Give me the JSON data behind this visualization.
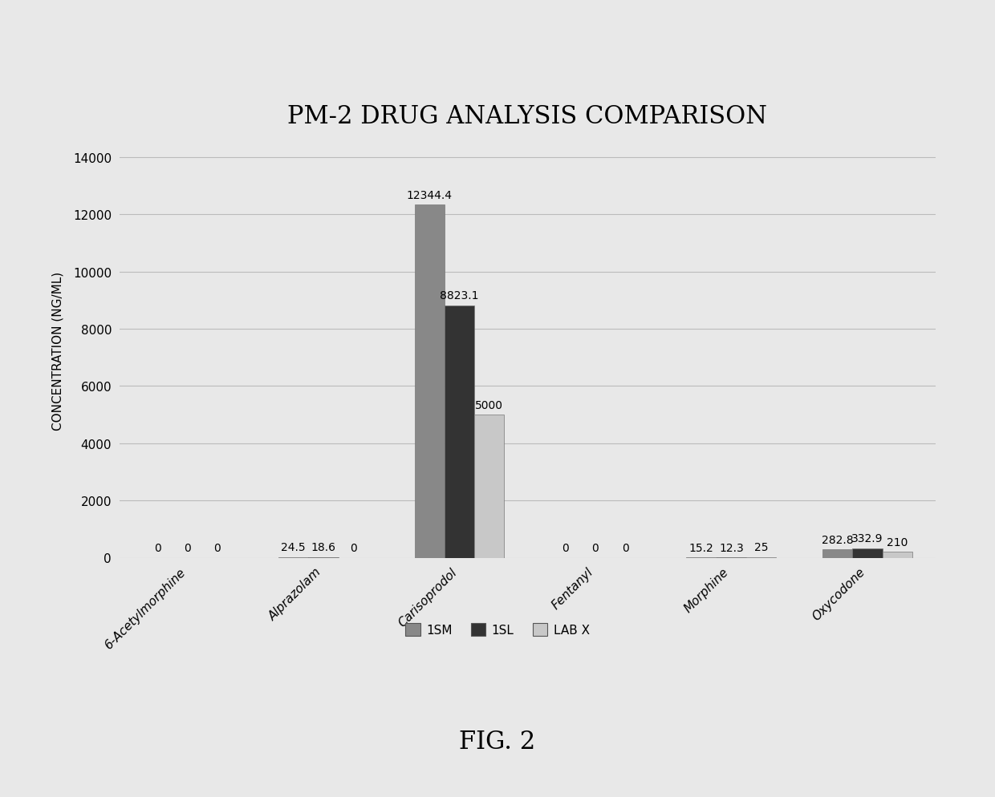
{
  "title": "PM-2 DRUG ANALYSIS COMPARISON",
  "ylabel": "CONCENTRATION (NG/ML)",
  "categories": [
    "6-Acetylmorphine",
    "Alprazolam",
    "Carisoprodol",
    "Fentanyl",
    "Morphine",
    "Oxycodone"
  ],
  "series": {
    "1SM": [
      0,
      24.5,
      12344.4,
      0,
      15.2,
      282.8
    ],
    "1SL": [
      0,
      18.6,
      8823.1,
      0,
      12.3,
      332.9
    ],
    "LAB X": [
      0,
      0,
      5000,
      0,
      25,
      210
    ]
  },
  "colors": {
    "1SM": "#888888",
    "1SL": "#333333",
    "LAB X": "#c8c8c8"
  },
  "ylim": [
    0,
    14500
  ],
  "yticks": [
    0,
    2000,
    4000,
    6000,
    8000,
    10000,
    12000,
    14000
  ],
  "bar_width": 0.22,
  "fig_caption": "FIG. 2",
  "background_color": "#e8e8e8",
  "plot_area_color": "#e8e8e8",
  "grid_color": "#bbbbbb",
  "title_fontsize": 22,
  "label_fontsize": 11,
  "tick_fontsize": 11,
  "annotation_fontsize": 10
}
